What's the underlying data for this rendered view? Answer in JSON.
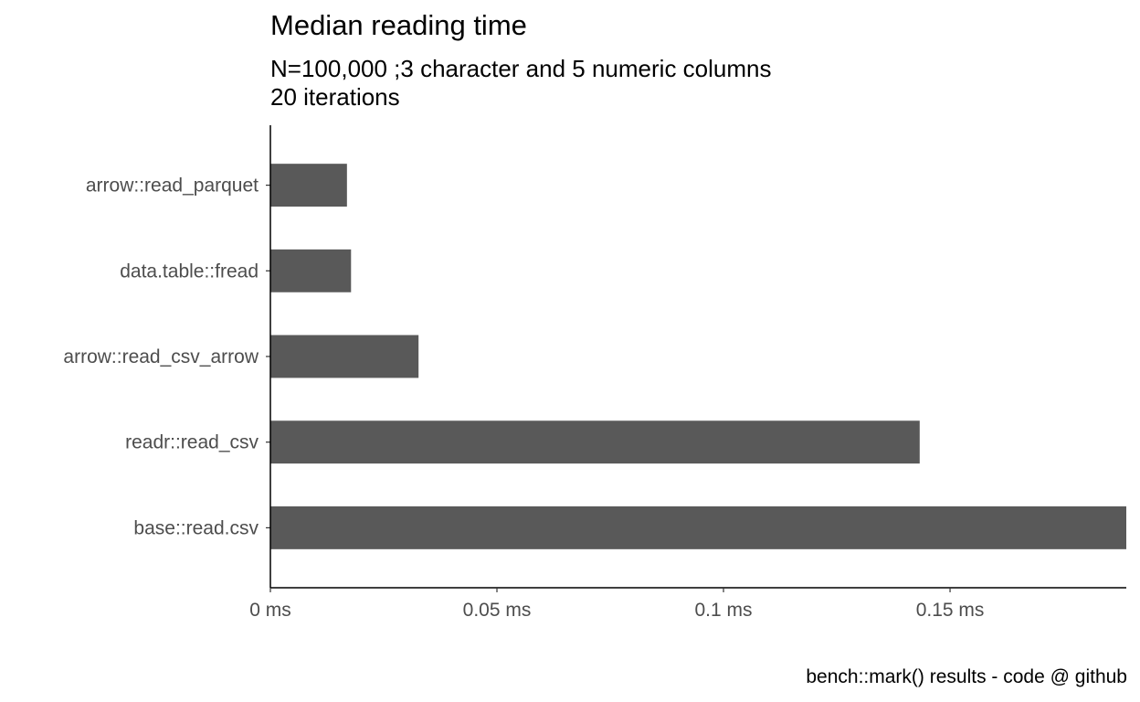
{
  "chart_data": {
    "type": "bar",
    "orientation": "horizontal",
    "title": "Median reading time",
    "subtitle": "N=100,000 ;3 character and 5 numeric columns\n20 iterations",
    "caption": "bench::mark() results - code @ github",
    "xlabel": "",
    "ylabel": "",
    "categories": [
      "arrow::read_parquet",
      "data.table::fread",
      "arrow::read_csv_arrow",
      "readr::read_csv",
      "base::read.csv"
    ],
    "values": [
      0.0169,
      0.0178,
      0.0327,
      0.1433,
      0.1889
    ],
    "unit": "ms",
    "xlim": [
      0,
      0.1889
    ],
    "xticks": [
      0,
      0.05,
      0.1,
      0.15
    ],
    "xtick_labels": [
      "0 ms",
      "0.05 ms",
      "0.1 ms",
      "0.15 ms"
    ],
    "bar_color": "#595959",
    "grid": false,
    "legend": "none"
  }
}
